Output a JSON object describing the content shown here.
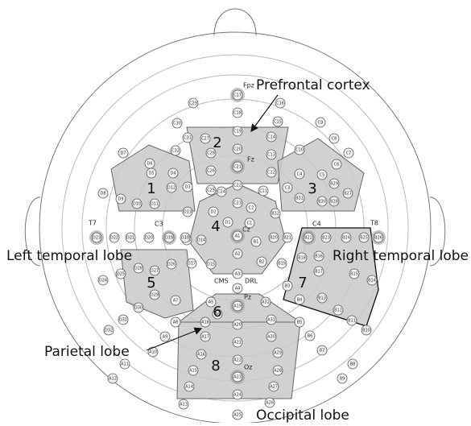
{
  "labels": {
    "prefrontal": "Prefrontal cortex",
    "left_temporal": "Left temporal lobe",
    "right_temporal": "Right temporal lobe",
    "parietal": "Parietal lobe",
    "occipital": "Occipital lobe"
  },
  "regions": [
    "1",
    "2",
    "3",
    "4",
    "5",
    "6",
    "7",
    "8"
  ],
  "landmarks": [
    "Fpz",
    "Fz",
    "Cz",
    "Pz",
    "Oz",
    "T7",
    "T8",
    "C3",
    "C4",
    "CMS",
    "DRL"
  ],
  "electrodes": [
    "C17",
    "C18",
    "C19",
    "C20",
    "C21",
    "C22",
    "C23",
    "C29",
    "C16",
    "C30",
    "C15",
    "C31",
    "C14",
    "C27",
    "C28",
    "C26",
    "C25",
    "C24",
    "C13",
    "C12",
    "C11",
    "C32",
    "C9",
    "C8",
    "C7",
    "C10",
    "C6",
    "C5",
    "C4",
    "C3",
    "C1",
    "C2",
    "B29",
    "B27",
    "B28",
    "B30",
    "B31",
    "B32",
    "B21",
    "B22",
    "B23",
    "B24",
    "B25",
    "B26",
    "B20",
    "B19",
    "B18",
    "B17",
    "B16",
    "B15",
    "B14",
    "B3",
    "B4",
    "B13",
    "B12",
    "B11",
    "B10",
    "B9",
    "B8",
    "B7",
    "B6",
    "B5",
    "B1",
    "B2",
    "A1",
    "A2",
    "A3",
    "A4",
    "A5",
    "A6",
    "A7",
    "A8",
    "A9",
    "A10",
    "A11",
    "A12",
    "A13",
    "A14",
    "A15",
    "A16",
    "A17",
    "A18",
    "A19",
    "A20",
    "A21",
    "A22",
    "A23",
    "A24",
    "A25",
    "A26",
    "A27",
    "A28",
    "A29",
    "A30",
    "A31",
    "A32",
    "D1",
    "D2",
    "D3",
    "D4",
    "D5",
    "D6",
    "D7",
    "D8",
    "D9",
    "D10",
    "D11",
    "D12",
    "D13",
    "D14",
    "D15",
    "D16",
    "D17",
    "D18",
    "D19",
    "D20",
    "D21",
    "D22",
    "D23",
    "D24",
    "D25",
    "D26",
    "D27",
    "D28",
    "D29",
    "D30",
    "D31",
    "D32"
  ],
  "highlighted": [
    "C17",
    "C21",
    "A1",
    "A19",
    "A23",
    "D19",
    "B22",
    "D23",
    "B26"
  ]
}
